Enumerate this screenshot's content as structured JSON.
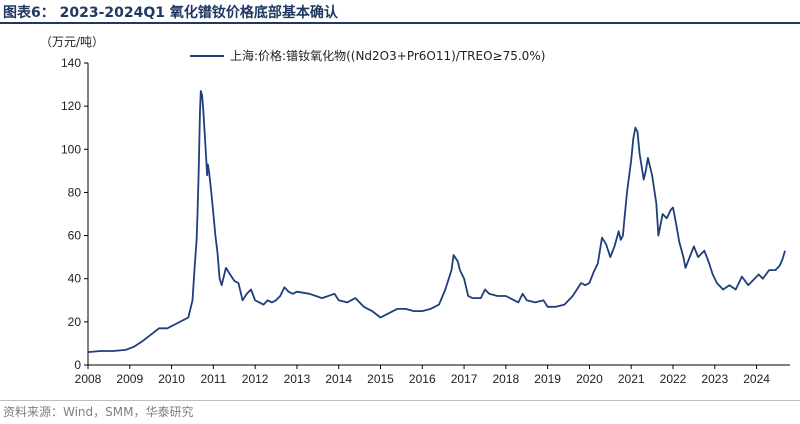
{
  "title": "图表6：  2023-2024Q1 氧化镨钕价格底部基本确认",
  "source": "资料来源：Wind，SMM，华泰研究",
  "colors": {
    "line": "#1f3f7a",
    "title": "#1f3864",
    "axis": "#000000"
  },
  "chart_data": {
    "type": "line",
    "title": "图表6：  2023-2024Q1 氧化镨钕价格底部基本确认",
    "ylabel": "（万元/吨）",
    "xlabel": "",
    "ylim": [
      0,
      140
    ],
    "yticks": [
      0,
      20,
      40,
      60,
      80,
      100,
      120,
      140
    ],
    "xlim": [
      2008,
      2024.8
    ],
    "xticks": [
      "2008",
      "2009",
      "2010",
      "2011",
      "2012",
      "2013",
      "2014",
      "2015",
      "2016",
      "2017",
      "2018",
      "2019",
      "2020",
      "2021",
      "2022",
      "2023",
      "2024"
    ],
    "legend_position": "top-center",
    "grid": false,
    "series": [
      {
        "name": "上海:价格:镨钕氧化物((Nd2O3+Pr6O11)/TREO≥75.0%)",
        "points": [
          [
            2008.0,
            6
          ],
          [
            2008.3,
            6.5
          ],
          [
            2008.6,
            6.5
          ],
          [
            2008.9,
            7
          ],
          [
            2009.1,
            8.5
          ],
          [
            2009.3,
            11
          ],
          [
            2009.5,
            14
          ],
          [
            2009.7,
            17
          ],
          [
            2009.9,
            17
          ],
          [
            2010.1,
            19
          ],
          [
            2010.3,
            21
          ],
          [
            2010.4,
            22
          ],
          [
            2010.5,
            30
          ],
          [
            2010.55,
            45
          ],
          [
            2010.6,
            58
          ],
          [
            2010.62,
            70
          ],
          [
            2010.65,
            90
          ],
          [
            2010.68,
            118
          ],
          [
            2010.7,
            127
          ],
          [
            2010.73,
            125
          ],
          [
            2010.76,
            118
          ],
          [
            2010.8,
            105
          ],
          [
            2010.83,
            95
          ],
          [
            2010.85,
            88
          ],
          [
            2010.87,
            93
          ],
          [
            2010.9,
            89
          ],
          [
            2010.95,
            80
          ],
          [
            2011.0,
            70
          ],
          [
            2011.05,
            60
          ],
          [
            2011.1,
            52
          ],
          [
            2011.15,
            40
          ],
          [
            2011.2,
            37
          ],
          [
            2011.3,
            45
          ],
          [
            2011.4,
            42
          ],
          [
            2011.5,
            39
          ],
          [
            2011.6,
            38
          ],
          [
            2011.7,
            30
          ],
          [
            2011.8,
            33
          ],
          [
            2011.9,
            35
          ],
          [
            2012.0,
            30
          ],
          [
            2012.1,
            29
          ],
          [
            2012.2,
            28
          ],
          [
            2012.3,
            30
          ],
          [
            2012.4,
            29
          ],
          [
            2012.5,
            30
          ],
          [
            2012.6,
            32
          ],
          [
            2012.7,
            36
          ],
          [
            2012.8,
            34
          ],
          [
            2012.9,
            33
          ],
          [
            2013.0,
            34
          ],
          [
            2013.3,
            33
          ],
          [
            2013.6,
            31
          ],
          [
            2013.9,
            33
          ],
          [
            2014.0,
            30
          ],
          [
            2014.2,
            29
          ],
          [
            2014.4,
            31
          ],
          [
            2014.6,
            27
          ],
          [
            2014.8,
            25
          ],
          [
            2015.0,
            22
          ],
          [
            2015.2,
            24
          ],
          [
            2015.4,
            26
          ],
          [
            2015.6,
            26
          ],
          [
            2015.8,
            25
          ],
          [
            2016.0,
            25
          ],
          [
            2016.2,
            26
          ],
          [
            2016.4,
            28
          ],
          [
            2016.55,
            35
          ],
          [
            2016.7,
            44
          ],
          [
            2016.75,
            51
          ],
          [
            2016.85,
            48
          ],
          [
            2016.9,
            44
          ],
          [
            2017.0,
            40
          ],
          [
            2017.1,
            32
          ],
          [
            2017.2,
            31
          ],
          [
            2017.4,
            31
          ],
          [
            2017.5,
            35
          ],
          [
            2017.6,
            33
          ],
          [
            2017.8,
            32
          ],
          [
            2018.0,
            32
          ],
          [
            2018.2,
            30
          ],
          [
            2018.3,
            29
          ],
          [
            2018.4,
            33
          ],
          [
            2018.5,
            30
          ],
          [
            2018.7,
            29
          ],
          [
            2018.9,
            30
          ],
          [
            2019.0,
            27
          ],
          [
            2019.2,
            27
          ],
          [
            2019.4,
            28
          ],
          [
            2019.6,
            32
          ],
          [
            2019.7,
            35
          ],
          [
            2019.8,
            38
          ],
          [
            2019.9,
            37
          ],
          [
            2020.0,
            38
          ],
          [
            2020.1,
            43
          ],
          [
            2020.2,
            47
          ],
          [
            2020.3,
            59
          ],
          [
            2020.4,
            56
          ],
          [
            2020.5,
            50
          ],
          [
            2020.6,
            55
          ],
          [
            2020.7,
            62
          ],
          [
            2020.75,
            58
          ],
          [
            2020.8,
            60
          ],
          [
            2020.85,
            70
          ],
          [
            2020.9,
            80
          ],
          [
            2021.0,
            95
          ],
          [
            2021.05,
            105
          ],
          [
            2021.1,
            110
          ],
          [
            2021.15,
            108
          ],
          [
            2021.2,
            98
          ],
          [
            2021.3,
            86
          ],
          [
            2021.35,
            90
          ],
          [
            2021.4,
            96
          ],
          [
            2021.5,
            88
          ],
          [
            2021.6,
            75
          ],
          [
            2021.65,
            60
          ],
          [
            2021.7,
            65
          ],
          [
            2021.75,
            70
          ],
          [
            2021.85,
            68
          ],
          [
            2021.95,
            72
          ],
          [
            2022.0,
            73
          ],
          [
            2022.05,
            68
          ],
          [
            2022.15,
            57
          ],
          [
            2022.25,
            50
          ],
          [
            2022.3,
            45
          ],
          [
            2022.4,
            50
          ],
          [
            2022.5,
            55
          ],
          [
            2022.6,
            50
          ],
          [
            2022.75,
            53
          ],
          [
            2022.85,
            48
          ],
          [
            2022.95,
            42
          ],
          [
            2023.05,
            38
          ],
          [
            2023.2,
            35
          ],
          [
            2023.35,
            37
          ],
          [
            2023.5,
            35
          ],
          [
            2023.65,
            41
          ],
          [
            2023.8,
            37
          ],
          [
            2023.95,
            40
          ],
          [
            2024.05,
            42
          ],
          [
            2024.15,
            40
          ],
          [
            2024.3,
            44
          ],
          [
            2024.45,
            44
          ],
          [
            2024.55,
            46
          ],
          [
            2024.62,
            49
          ],
          [
            2024.68,
            53
          ]
        ]
      }
    ]
  }
}
